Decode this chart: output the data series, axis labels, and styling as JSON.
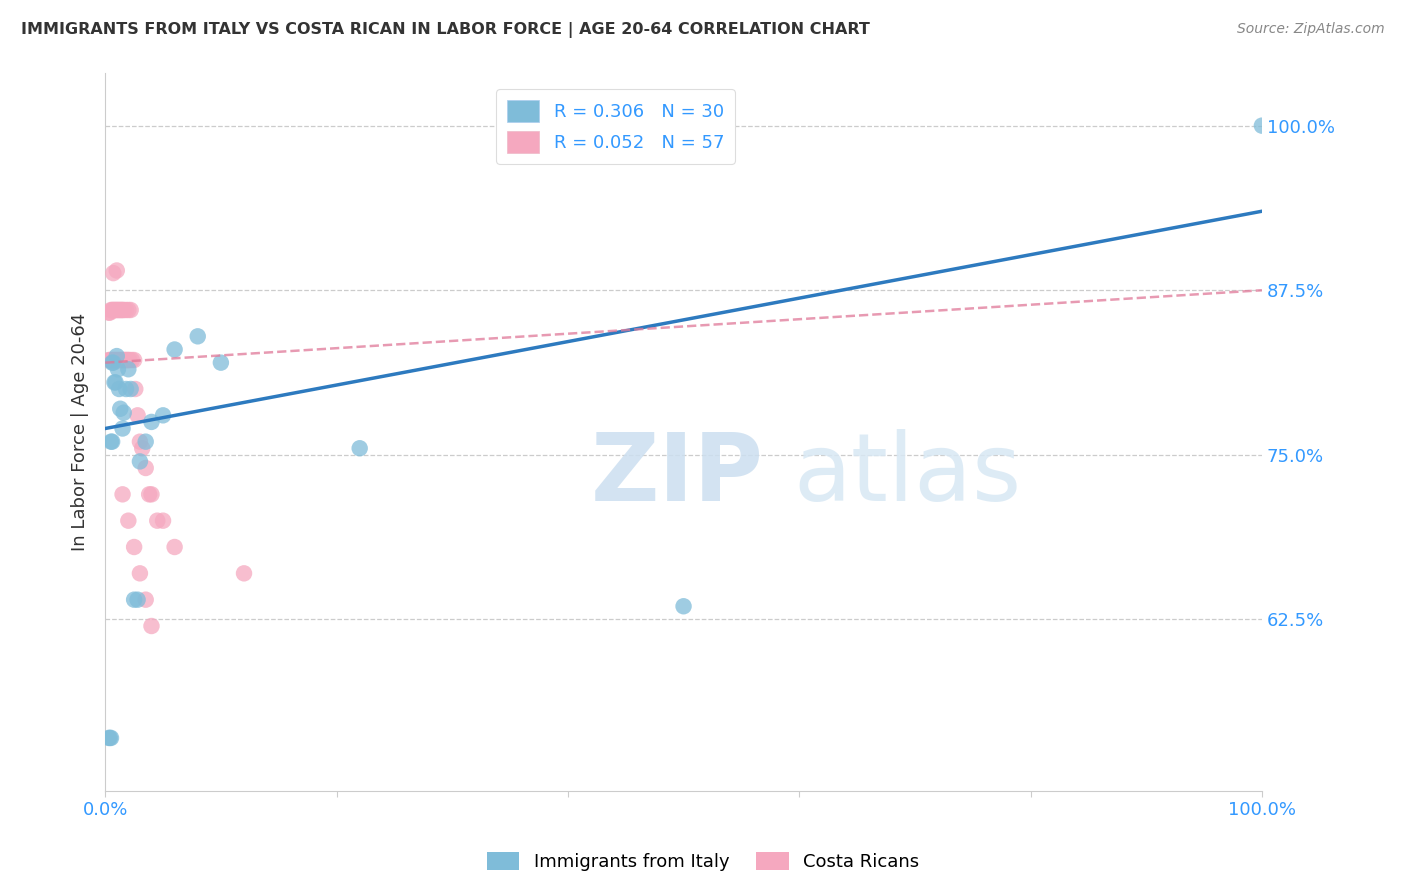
{
  "title": "IMMIGRANTS FROM ITALY VS COSTA RICAN IN LABOR FORCE | AGE 20-64 CORRELATION CHART",
  "source": "Source: ZipAtlas.com",
  "ylabel": "In Labor Force | Age 20-64",
  "ytick_labels": [
    "62.5%",
    "75.0%",
    "87.5%",
    "100.0%"
  ],
  "ytick_values": [
    0.625,
    0.75,
    0.875,
    1.0
  ],
  "xlim": [
    0.0,
    1.0
  ],
  "ylim": [
    0.495,
    1.04
  ],
  "legend_blue_r": "0.306",
  "legend_blue_n": "30",
  "legend_pink_r": "0.052",
  "legend_pink_n": "57",
  "blue_color": "#7fbcd9",
  "pink_color": "#f5a8bf",
  "blue_line_color": "#2d7abf",
  "pink_line_color": "#e07898",
  "blue_line_x0": 0.0,
  "blue_line_y0": 0.77,
  "blue_line_x1": 1.0,
  "blue_line_y1": 0.935,
  "pink_line_x0": 0.0,
  "pink_line_y0": 0.82,
  "pink_line_x1": 1.0,
  "pink_line_y1": 0.875,
  "italy_x": [
    0.003,
    0.004,
    0.005,
    0.005,
    0.006,
    0.006,
    0.007,
    0.008,
    0.009,
    0.01,
    0.011,
    0.012,
    0.013,
    0.015,
    0.016,
    0.018,
    0.02,
    0.022,
    0.025,
    0.028,
    0.03,
    0.035,
    0.04,
    0.05,
    0.06,
    0.08,
    0.1,
    0.22,
    0.5,
    1.0
  ],
  "italy_y": [
    0.535,
    0.535,
    0.535,
    0.76,
    0.76,
    0.82,
    0.82,
    0.805,
    0.805,
    0.825,
    0.815,
    0.8,
    0.785,
    0.77,
    0.782,
    0.8,
    0.815,
    0.8,
    0.64,
    0.64,
    0.745,
    0.76,
    0.775,
    0.78,
    0.83,
    0.84,
    0.82,
    0.755,
    0.635,
    1.0
  ],
  "costa_x": [
    0.003,
    0.003,
    0.004,
    0.004,
    0.005,
    0.005,
    0.006,
    0.006,
    0.007,
    0.007,
    0.007,
    0.008,
    0.008,
    0.009,
    0.009,
    0.01,
    0.01,
    0.01,
    0.011,
    0.011,
    0.012,
    0.012,
    0.013,
    0.013,
    0.014,
    0.014,
    0.015,
    0.015,
    0.016,
    0.016,
    0.017,
    0.018,
    0.018,
    0.019,
    0.02,
    0.02,
    0.021,
    0.022,
    0.023,
    0.025,
    0.026,
    0.028,
    0.03,
    0.032,
    0.035,
    0.038,
    0.04,
    0.045,
    0.05,
    0.06,
    0.015,
    0.02,
    0.025,
    0.03,
    0.035,
    0.04,
    0.12
  ],
  "costa_y": [
    0.822,
    0.858,
    0.822,
    0.858,
    0.822,
    0.86,
    0.822,
    0.86,
    0.822,
    0.86,
    0.888,
    0.822,
    0.86,
    0.822,
    0.86,
    0.822,
    0.86,
    0.89,
    0.822,
    0.86,
    0.822,
    0.86,
    0.822,
    0.86,
    0.822,
    0.86,
    0.822,
    0.86,
    0.822,
    0.86,
    0.822,
    0.822,
    0.86,
    0.822,
    0.822,
    0.86,
    0.822,
    0.86,
    0.822,
    0.822,
    0.8,
    0.78,
    0.76,
    0.755,
    0.74,
    0.72,
    0.72,
    0.7,
    0.7,
    0.68,
    0.72,
    0.7,
    0.68,
    0.66,
    0.64,
    0.62,
    0.66
  ]
}
